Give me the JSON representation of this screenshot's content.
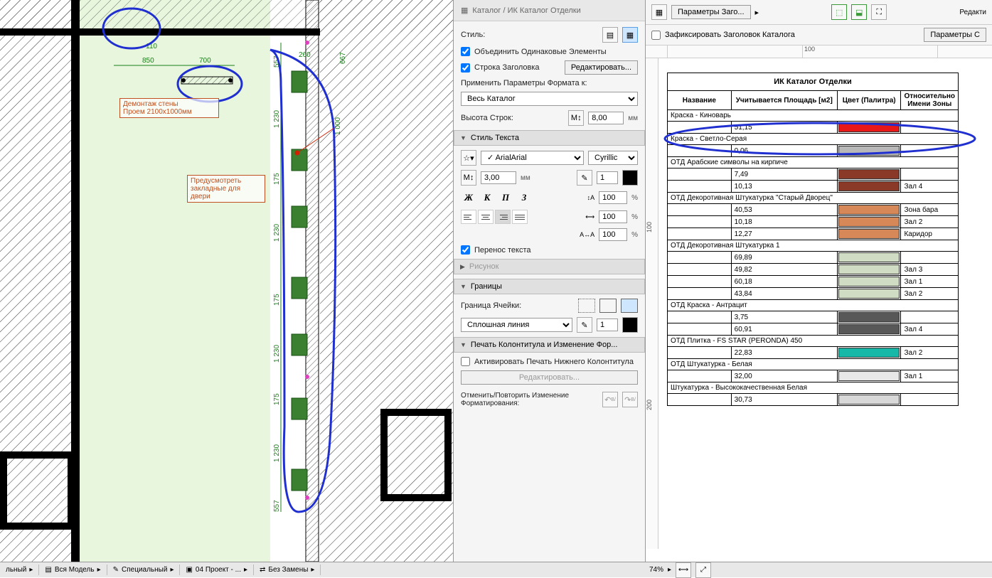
{
  "settings": {
    "title": "Каталог / ИК Каталог Отделки",
    "style_label": "Стиль:",
    "merge_same": "Объединить Одинаковые Элементы",
    "header_row": "Строка Заголовка",
    "edit_btn": "Редактировать...",
    "apply_format_to": "Применить Параметры Формата к:",
    "apply_scope": "Весь Каталог",
    "row_height_label": "Высота Строк:",
    "row_height": "8,00",
    "mm": "мм",
    "text_style_section": "Стиль Текста",
    "font_name": "Arial",
    "font_script": "Cyrillic",
    "font_size": "3,00",
    "leading": "1",
    "indent": "100",
    "rot": "100",
    "char_spacing": "100",
    "wrap_text": "Перенос текста",
    "picture_section": "Рисунок",
    "borders_section": "Границы",
    "cell_border_label": "Граница Ячейки:",
    "line_style": "Сплошная линия",
    "line_weight": "1",
    "footer_section": "Печать Колонтитула и Изменение Фор...",
    "activate_footer": "Активировать Печать Нижнего Колонтитула",
    "edit_btn2": "Редактировать...",
    "undo_label": "Отменить/Повторить Изменение Форматирования:",
    "bold": "Ж",
    "italic": "К",
    "underline": "П",
    "strike": "З",
    "percent": "%"
  },
  "right": {
    "params_header_btn": "Параметры Заго...",
    "params_side_btn": "Параметры С",
    "fix_header": "Зафиксировать Заголовок Каталога",
    "edit_link": "Редакти",
    "ruler_100": "100",
    "zoom": "74%"
  },
  "catalog": {
    "title": "ИК Каталог Отделки",
    "columns": [
      "Название",
      "Учитывается Площадь [м2]",
      "Цвет (Палитра)",
      "Относительно Имени Зоны"
    ],
    "groups": [
      {
        "name": "Краска - Киноварь",
        "rows": [
          {
            "area": "51,15",
            "color": "#e81818",
            "zone": ""
          }
        ]
      },
      {
        "name": "Краска - Светло-Серая",
        "rows": [
          {
            "area": "0,06",
            "color": "#b8b8b8",
            "zone": ""
          }
        ]
      },
      {
        "name": "ОТД Арабские символы на кирпиче",
        "rows": [
          {
            "area": "7,49",
            "color": "#8a3828",
            "zone": ""
          },
          {
            "area": "10,13",
            "color": "#8a3828",
            "zone": "Зал 4"
          }
        ]
      },
      {
        "name": "ОТД Декоротивная Штукатурка \"Старый Дворец\"",
        "rows": [
          {
            "area": "40,53",
            "color": "#d68858",
            "zone": "Зона бара"
          },
          {
            "area": "10,18",
            "color": "#d68858",
            "zone": "Зал 2"
          },
          {
            "area": "12,27",
            "color": "#d68858",
            "zone": "Каридор"
          }
        ]
      },
      {
        "name": "ОТД Декоротивная Штукатурка 1",
        "rows": [
          {
            "area": "69,89",
            "color": "#d0dcc4",
            "zone": ""
          },
          {
            "area": "49,82",
            "color": "#d0dcc4",
            "zone": "Зал 3"
          },
          {
            "area": "60,18",
            "color": "#d0dcc4",
            "zone": "Зал 1"
          },
          {
            "area": "43,84",
            "color": "#d0dcc4",
            "zone": "Зал 2"
          }
        ]
      },
      {
        "name": "ОТД Краска - Антрацит",
        "rows": [
          {
            "area": "3,75",
            "color": "#585858",
            "zone": ""
          },
          {
            "area": "60,91",
            "color": "#585858",
            "zone": "Зал 4"
          }
        ]
      },
      {
        "name": "ОТД Плитка - FS STAR (PERONDA) 450",
        "rows": [
          {
            "area": "22,83",
            "color": "#18b8a8",
            "zone": "Зал 2"
          }
        ]
      },
      {
        "name": "ОТД Штукатурка - Белая",
        "rows": [
          {
            "area": "32,00",
            "color": "#e8e8e8",
            "zone": "Зал 1"
          }
        ]
      },
      {
        "name": "Штукатурка - Высококачественная Белая",
        "rows": [
          {
            "area": "30,73",
            "color": "#d8d8d8",
            "zone": ""
          }
        ]
      }
    ]
  },
  "floorplan": {
    "annotation1_l1": "Демонтаж стены",
    "annotation1_l2": "Проем 2100х1000мм",
    "annotation2_l1": "Предусмотреть",
    "annotation2_l2": "закладные для",
    "annotation2_l3": "двери",
    "dims": {
      "d850": "850",
      "d700": "700",
      "d260": "260",
      "d110": "110",
      "d667": "667",
      "d557a": "557",
      "d1230a": "1 230",
      "d175a": "175",
      "d1230b": "1 230",
      "d175b": "175",
      "d1230c": "1 230",
      "d175c": "175",
      "d1230d": "1 230",
      "d557b": "557",
      "d1000": "1 000"
    }
  },
  "bottom": {
    "tab1": "льный",
    "tab2": "Вся Модель",
    "tab3": "Специальный",
    "tab4": "04 Проект - ...",
    "tab5": "Без Замены"
  },
  "vruler": {
    "v100": "100",
    "v200": "200"
  }
}
